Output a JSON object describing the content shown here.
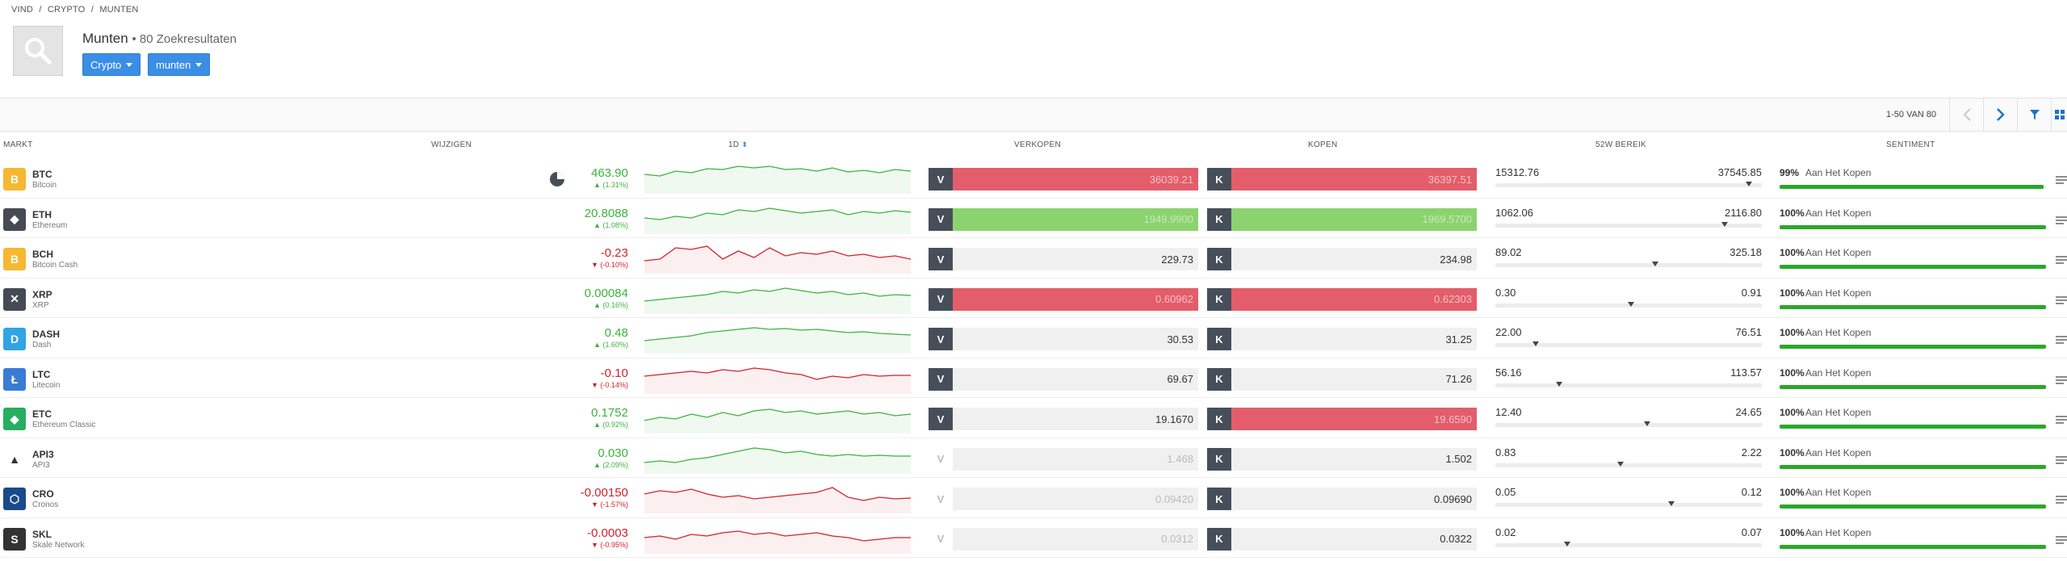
{
  "breadcrumb": [
    "VIND",
    "/",
    "CRYPTO",
    "/",
    "MUNTEN"
  ],
  "header": {
    "title": "Munten",
    "results": "• 80 Zoekresultaten",
    "filter_crypto": "Crypto",
    "filter_munten": "munten"
  },
  "pager": {
    "text": "1-50 VAN 80"
  },
  "columns": {
    "market": "MARKT",
    "change": "WIJZIGEN",
    "period": "1D",
    "sell": "VERKOPEN",
    "buy": "KOPEN",
    "range": "52W BEREIK",
    "sentiment": "SENTIMENT"
  },
  "colors": {
    "up": "#3bb33b",
    "down": "#d6202a",
    "accent": "#3a8ee6",
    "sentiment": "#2aa82a"
  },
  "rows": [
    {
      "symbol": "BTC",
      "name": "Bitcoin",
      "icon": "bitcoin-icon",
      "icon_color": "#f7b731",
      "glyph": "B",
      "change": "463.90",
      "pct": "▲ (1.31%)",
      "dir": "up",
      "sell": "36039.21",
      "buy": "36397.51",
      "sell_style": "red",
      "buy_style": "red",
      "sell_badge_dim": false,
      "range_low": "15312.76",
      "range_high": "37545.85",
      "range_pos": 0.95,
      "sent_pct": "99%",
      "sent_label": "Aan Het Kopen",
      "sent_value": 0.99,
      "spark": [
        14,
        16,
        10,
        12,
        7,
        8,
        4,
        6,
        4,
        8,
        7,
        10,
        6,
        11,
        9,
        12,
        8,
        10
      ],
      "pie": true
    },
    {
      "symbol": "ETH",
      "name": "Ethereum",
      "icon": "ethereum-icon",
      "icon_color": "#444b55",
      "glyph": "◆",
      "change": "20.8088",
      "pct": "▲ (1.08%)",
      "dir": "up",
      "sell": "1949.9900",
      "buy": "1969.5700",
      "sell_style": "green",
      "buy_style": "green",
      "sell_badge_dim": false,
      "range_low": "1062.06",
      "range_high": "2116.80",
      "range_pos": 0.86,
      "sent_pct": "100%",
      "sent_label": "Aan Het Kopen",
      "sent_value": 1.0,
      "spark": [
        18,
        20,
        16,
        18,
        12,
        14,
        8,
        10,
        6,
        9,
        12,
        10,
        8,
        14,
        10,
        12,
        9,
        11
      ]
    },
    {
      "symbol": "BCH",
      "name": "Bitcoin Cash",
      "icon": "bitcoin-cash-icon",
      "icon_color": "#f7b731",
      "glyph": "B",
      "change": "-0.23",
      "pct": "▼ (-0.10%)",
      "dir": "down",
      "sell": "229.73",
      "buy": "234.98",
      "sell_style": "",
      "buy_style": "",
      "sell_badge_dim": false,
      "range_low": "89.02",
      "range_high": "325.18",
      "range_pos": 0.6,
      "sent_pct": "100%",
      "sent_label": "Aan Het Kopen",
      "sent_value": 1.0,
      "spark": [
        22,
        20,
        6,
        8,
        4,
        20,
        10,
        18,
        6,
        16,
        12,
        14,
        10,
        16,
        14,
        18,
        16,
        20
      ]
    },
    {
      "symbol": "XRP",
      "name": "XRP",
      "icon": "xrp-icon",
      "icon_color": "#444b55",
      "glyph": "✕",
      "change": "0.00084",
      "pct": "▲ (0.16%)",
      "dir": "up",
      "sell": "0.60962",
      "buy": "0.62303",
      "sell_style": "red",
      "buy_style": "red",
      "sell_badge_dim": false,
      "range_low": "0.30",
      "range_high": "0.91",
      "range_pos": 0.51,
      "sent_pct": "100%",
      "sent_label": "Aan Het Kopen",
      "sent_value": 1.0,
      "spark": [
        22,
        20,
        18,
        16,
        14,
        10,
        12,
        8,
        10,
        6,
        9,
        12,
        10,
        14,
        12,
        16,
        14,
        15
      ]
    },
    {
      "symbol": "DASH",
      "name": "Dash",
      "icon": "dash-icon",
      "icon_color": "#2fa4e7",
      "glyph": "D",
      "change": "0.48",
      "pct": "▲ (1.60%)",
      "dir": "up",
      "sell": "30.53",
      "buy": "31.25",
      "sell_style": "",
      "buy_style": "",
      "sell_badge_dim": false,
      "range_low": "22.00",
      "range_high": "76.51",
      "range_pos": 0.15,
      "sent_pct": "100%",
      "sent_label": "Aan Het Kopen",
      "sent_value": 1.0,
      "spark": [
        22,
        20,
        18,
        16,
        12,
        10,
        8,
        6,
        8,
        7,
        9,
        8,
        10,
        12,
        11,
        13,
        14,
        15
      ]
    },
    {
      "symbol": "LTC",
      "name": "Litecoin",
      "icon": "litecoin-icon",
      "icon_color": "#3a7bd5",
      "glyph": "Ł",
      "change": "-0.10",
      "pct": "▼ (-0.14%)",
      "dir": "down",
      "sell": "69.67",
      "buy": "71.26",
      "sell_style": "",
      "buy_style": "",
      "sell_badge_dim": false,
      "range_low": "56.16",
      "range_high": "113.57",
      "range_pos": 0.24,
      "sent_pct": "100%",
      "sent_label": "Aan Het Kopen",
      "sent_value": 1.0,
      "spark": [
        16,
        14,
        12,
        10,
        12,
        8,
        10,
        6,
        8,
        12,
        14,
        20,
        16,
        18,
        14,
        16,
        15,
        15
      ]
    },
    {
      "symbol": "ETC",
      "name": "Ethereum Classic",
      "icon": "ethereum-classic-icon",
      "icon_color": "#27ae60",
      "glyph": "◆",
      "change": "0.1752",
      "pct": "▲ (0.92%)",
      "dir": "up",
      "sell": "19.1670",
      "buy": "19.6590",
      "sell_style": "",
      "buy_style": "red",
      "sell_badge_dim": false,
      "range_low": "12.40",
      "range_high": "24.65",
      "range_pos": 0.57,
      "sent_pct": "100%",
      "sent_label": "Aan Het Kopen",
      "sent_value": 1.0,
      "spark": [
        22,
        18,
        20,
        14,
        18,
        12,
        16,
        10,
        8,
        12,
        10,
        14,
        12,
        10,
        14,
        12,
        16,
        14
      ]
    },
    {
      "symbol": "API3",
      "name": "API3",
      "icon": "api3-icon",
      "icon_color": "#ffffff",
      "glyph": "▲",
      "change": "0.030",
      "pct": "▲ (2.09%)",
      "dir": "up",
      "sell": "1.468",
      "buy": "1.502",
      "sell_style": "dim",
      "buy_style": "",
      "sell_badge_dim": true,
      "range_low": "0.83",
      "range_high": "2.22",
      "range_pos": 0.47,
      "sent_pct": "100%",
      "sent_label": "Aan Het Kopen",
      "sent_value": 1.0,
      "spark": [
        24,
        22,
        24,
        20,
        18,
        14,
        10,
        6,
        8,
        12,
        10,
        14,
        16,
        14,
        16,
        15,
        16,
        16
      ]
    },
    {
      "symbol": "CRO",
      "name": "Cronos",
      "icon": "cronos-icon",
      "icon_color": "#1b4a8c",
      "glyph": "⬡",
      "change": "-0.00150",
      "pct": "▼ (-1.57%)",
      "dir": "down",
      "sell": "0.09420",
      "buy": "0.09690",
      "sell_style": "dim",
      "buy_style": "",
      "sell_badge_dim": true,
      "range_low": "0.05",
      "range_high": "0.12",
      "range_pos": 0.66,
      "sent_pct": "100%",
      "sent_label": "Aan Het Kopen",
      "sent_value": 1.0,
      "spark": [
        14,
        10,
        12,
        8,
        14,
        18,
        16,
        20,
        18,
        16,
        14,
        12,
        6,
        18,
        22,
        18,
        20,
        19
      ]
    },
    {
      "symbol": "SKL",
      "name": "Skale Network",
      "icon": "skale-icon",
      "icon_color": "#333333",
      "glyph": "S",
      "change": "-0.0003",
      "pct": "▼ (-0.95%)",
      "dir": "down",
      "sell": "0.0312",
      "buy": "0.0322",
      "sell_style": "dim",
      "buy_style": "",
      "sell_badge_dim": true,
      "range_low": "0.02",
      "range_high": "0.07",
      "range_pos": 0.27,
      "sent_pct": "100%",
      "sent_label": "Aan Het Kopen",
      "sent_value": 1.0,
      "spark": [
        18,
        16,
        20,
        14,
        16,
        12,
        10,
        14,
        12,
        16,
        14,
        12,
        16,
        18,
        22,
        20,
        18,
        18
      ]
    }
  ]
}
